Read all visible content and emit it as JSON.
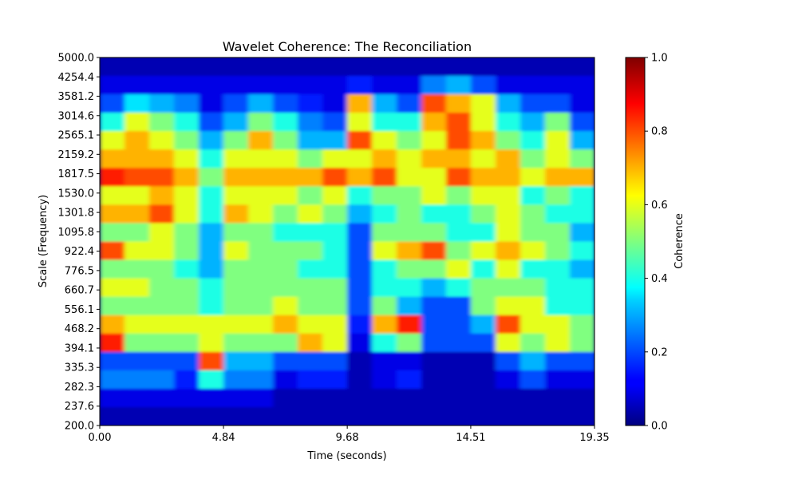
{
  "chart_data": {
    "type": "heatmap",
    "title": "Wavelet Coherence: The Reconciliation",
    "xlabel": "Time (seconds)",
    "ylabel": "Scale (Frequency)",
    "xlim": [
      0.0,
      19.35
    ],
    "x_ticks": [
      "0.00",
      "4.84",
      "9.68",
      "14.51",
      "19.35"
    ],
    "y_ticks": [
      "5000.0",
      "4254.4",
      "3581.2",
      "3014.6",
      "2565.1",
      "2159.2",
      "1817.5",
      "1530.0",
      "1301.8",
      "1095.8",
      "922.4",
      "776.5",
      "660.7",
      "556.1",
      "468.2",
      "394.1",
      "335.3",
      "282.3",
      "237.6",
      "200.0"
    ],
    "colorbar": {
      "label": "Coherence",
      "ticks": [
        "0.0",
        "0.2",
        "0.4",
        "0.6",
        "0.8",
        "1.0"
      ],
      "range": [
        0.0,
        1.0
      ],
      "colormap": "jet"
    },
    "grid_approx": {
      "time_bins": 20,
      "scale_bins_top_to_bottom": [
        "5000.0",
        "4254.4",
        "3581.2",
        "3014.6",
        "2565.1",
        "2159.2",
        "1817.5",
        "1530.0",
        "1301.8",
        "1095.8",
        "922.4",
        "776.5",
        "660.7",
        "556.1",
        "468.2",
        "394.1",
        "335.3",
        "282.3",
        "237.6",
        "200.0"
      ],
      "values": [
        [
          0.05,
          0.05,
          0.05,
          0.05,
          0.05,
          0.05,
          0.05,
          0.05,
          0.05,
          0.05,
          0.05,
          0.05,
          0.05,
          0.05,
          0.05,
          0.05,
          0.05,
          0.05,
          0.05,
          0.05
        ],
        [
          0.1,
          0.1,
          0.1,
          0.1,
          0.1,
          0.1,
          0.1,
          0.1,
          0.1,
          0.1,
          0.15,
          0.1,
          0.1,
          0.25,
          0.3,
          0.2,
          0.1,
          0.1,
          0.1,
          0.1
        ],
        [
          0.2,
          0.35,
          0.3,
          0.25,
          0.1,
          0.2,
          0.3,
          0.2,
          0.15,
          0.1,
          0.7,
          0.3,
          0.2,
          0.8,
          0.7,
          0.6,
          0.3,
          0.2,
          0.2,
          0.1
        ],
        [
          0.4,
          0.6,
          0.5,
          0.4,
          0.2,
          0.3,
          0.5,
          0.4,
          0.25,
          0.2,
          0.6,
          0.4,
          0.4,
          0.7,
          0.8,
          0.6,
          0.4,
          0.3,
          0.5,
          0.2
        ],
        [
          0.6,
          0.7,
          0.6,
          0.5,
          0.3,
          0.5,
          0.7,
          0.5,
          0.3,
          0.3,
          0.8,
          0.6,
          0.5,
          0.6,
          0.8,
          0.7,
          0.5,
          0.4,
          0.6,
          0.3
        ],
        [
          0.7,
          0.7,
          0.7,
          0.6,
          0.4,
          0.6,
          0.6,
          0.6,
          0.5,
          0.6,
          0.6,
          0.7,
          0.6,
          0.7,
          0.7,
          0.6,
          0.7,
          0.5,
          0.6,
          0.5
        ],
        [
          0.85,
          0.8,
          0.8,
          0.7,
          0.5,
          0.7,
          0.7,
          0.7,
          0.7,
          0.8,
          0.7,
          0.8,
          0.6,
          0.6,
          0.8,
          0.7,
          0.7,
          0.6,
          0.7,
          0.7
        ],
        [
          0.6,
          0.6,
          0.7,
          0.6,
          0.4,
          0.6,
          0.6,
          0.6,
          0.5,
          0.6,
          0.4,
          0.5,
          0.5,
          0.6,
          0.5,
          0.6,
          0.6,
          0.4,
          0.5,
          0.4
        ],
        [
          0.7,
          0.7,
          0.8,
          0.6,
          0.4,
          0.7,
          0.6,
          0.5,
          0.6,
          0.5,
          0.3,
          0.4,
          0.5,
          0.4,
          0.4,
          0.5,
          0.6,
          0.5,
          0.4,
          0.4
        ],
        [
          0.5,
          0.5,
          0.6,
          0.5,
          0.3,
          0.5,
          0.5,
          0.4,
          0.4,
          0.4,
          0.2,
          0.5,
          0.5,
          0.5,
          0.4,
          0.4,
          0.6,
          0.5,
          0.5,
          0.3
        ],
        [
          0.8,
          0.6,
          0.6,
          0.5,
          0.3,
          0.6,
          0.5,
          0.5,
          0.5,
          0.4,
          0.2,
          0.6,
          0.7,
          0.8,
          0.5,
          0.6,
          0.7,
          0.6,
          0.5,
          0.4
        ],
        [
          0.5,
          0.5,
          0.5,
          0.4,
          0.3,
          0.5,
          0.5,
          0.5,
          0.4,
          0.4,
          0.2,
          0.4,
          0.5,
          0.5,
          0.6,
          0.4,
          0.6,
          0.4,
          0.4,
          0.3
        ],
        [
          0.6,
          0.6,
          0.5,
          0.5,
          0.4,
          0.5,
          0.5,
          0.5,
          0.5,
          0.5,
          0.2,
          0.4,
          0.4,
          0.3,
          0.4,
          0.5,
          0.5,
          0.5,
          0.4,
          0.4
        ],
        [
          0.5,
          0.5,
          0.5,
          0.5,
          0.4,
          0.5,
          0.5,
          0.6,
          0.5,
          0.5,
          0.2,
          0.5,
          0.3,
          0.2,
          0.2,
          0.5,
          0.6,
          0.6,
          0.4,
          0.4
        ],
        [
          0.7,
          0.6,
          0.6,
          0.6,
          0.6,
          0.6,
          0.6,
          0.7,
          0.6,
          0.6,
          0.15,
          0.7,
          0.85,
          0.2,
          0.2,
          0.3,
          0.8,
          0.6,
          0.6,
          0.5
        ],
        [
          0.85,
          0.5,
          0.5,
          0.5,
          0.6,
          0.5,
          0.5,
          0.5,
          0.7,
          0.6,
          0.1,
          0.4,
          0.5,
          0.2,
          0.2,
          0.2,
          0.6,
          0.5,
          0.6,
          0.5
        ],
        [
          0.2,
          0.2,
          0.2,
          0.2,
          0.8,
          0.3,
          0.3,
          0.2,
          0.2,
          0.2,
          0.05,
          0.1,
          0.1,
          0.05,
          0.05,
          0.05,
          0.2,
          0.3,
          0.2,
          0.2
        ],
        [
          0.25,
          0.25,
          0.25,
          0.15,
          0.4,
          0.25,
          0.25,
          0.1,
          0.15,
          0.15,
          0.05,
          0.1,
          0.15,
          0.05,
          0.05,
          0.05,
          0.1,
          0.2,
          0.1,
          0.1
        ],
        [
          0.1,
          0.1,
          0.1,
          0.1,
          0.1,
          0.1,
          0.1,
          0.05,
          0.05,
          0.05,
          0.05,
          0.05,
          0.05,
          0.05,
          0.05,
          0.05,
          0.05,
          0.05,
          0.05,
          0.05
        ],
        [
          0.05,
          0.05,
          0.05,
          0.05,
          0.05,
          0.05,
          0.05,
          0.05,
          0.05,
          0.05,
          0.05,
          0.05,
          0.05,
          0.05,
          0.05,
          0.05,
          0.05,
          0.05,
          0.05,
          0.05
        ]
      ]
    }
  }
}
